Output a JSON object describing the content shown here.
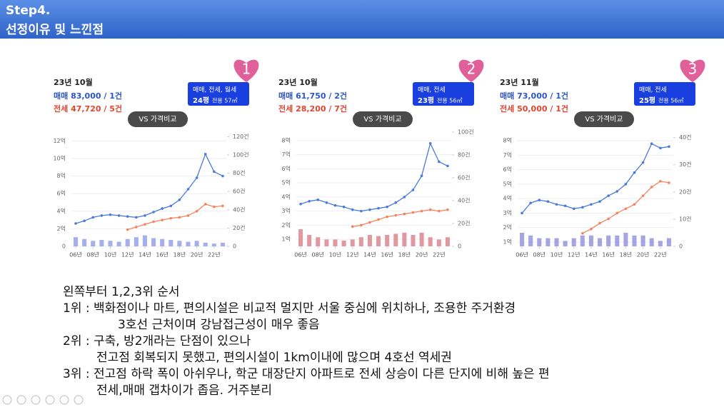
{
  "header": {
    "step": "Step4.",
    "title": "선정이유 및 느낀점"
  },
  "panels": [
    {
      "rank": "1",
      "date": "23년 10월",
      "sale": "매매 83,000 / 1건",
      "jeonse": "전세 47,720 / 5건",
      "selector": "매매, 전세, 월세",
      "size": "24평",
      "area": "전용 57㎡",
      "compare": "VS 가격비교",
      "chart_data": {
        "type": "line",
        "x": [
          2006,
          2007,
          2008,
          2009,
          2010,
          2011,
          2012,
          2013,
          2014,
          2015,
          2016,
          2017,
          2018,
          2019,
          2020,
          2021,
          2022,
          2023
        ],
        "xlim": [
          2005.5,
          2023.5
        ],
        "xticks": [
          {
            "value": 2006,
            "label": "06년"
          },
          {
            "value": 2008,
            "label": "08년"
          },
          {
            "value": 2010,
            "label": "10년"
          },
          {
            "value": 2012,
            "label": "12년"
          },
          {
            "value": 2014,
            "label": "14년"
          },
          {
            "value": 2016,
            "label": "16년"
          },
          {
            "value": 2018,
            "label": "18년"
          },
          {
            "value": 2020,
            "label": "20년"
          },
          {
            "value": 2022,
            "label": "22년"
          }
        ],
        "ylim": [
          0,
          13
        ],
        "yticks": [
          0,
          {
            "value": 2,
            "label": "2억"
          },
          {
            "value": 4,
            "label": "4억"
          },
          {
            "value": 6,
            "label": "6억"
          },
          {
            "value": 8,
            "label": "8억"
          },
          {
            "value": 10,
            "label": "10억"
          },
          {
            "value": 12,
            "label": "12억"
          }
        ],
        "y2lim": [
          0,
          125
        ],
        "y2ticks": [
          0,
          {
            "value": 20,
            "label": "20건"
          },
          {
            "value": 40,
            "label": "40건"
          },
          {
            "value": 60,
            "label": "60건"
          },
          {
            "value": 80,
            "label": "80건"
          },
          {
            "value": 100,
            "label": "100건"
          },
          {
            "value": 120,
            "label": "120건"
          }
        ],
        "series": [
          {
            "color": "#8e9be6",
            "axis": "y2",
            "type": "bar",
            "values": [
              10,
              8,
              6,
              7,
              6,
              5,
              8,
              10,
              12,
              9,
              8,
              7,
              6,
              5,
              6,
              4,
              3,
              4
            ]
          },
          {
            "color": "#4a7bdc",
            "values": [
              2.6,
              2.9,
              3.3,
              3.5,
              3.6,
              3.5,
              3.4,
              3.3,
              3.5,
              3.9,
              4.3,
              4.6,
              5.3,
              6.5,
              7.8,
              10.5,
              8.5,
              8.0
            ]
          },
          {
            "color": "#f4845f",
            "values": [
              null,
              null,
              null,
              null,
              null,
              null,
              1.9,
              2.2,
              2.5,
              2.8,
              3.0,
              3.2,
              3.3,
              3.5,
              4.0,
              4.8,
              4.5,
              4.6
            ]
          }
        ]
      }
    },
    {
      "rank": "2",
      "date": "23년 10월",
      "sale": "매매 61,750 / 2건",
      "jeonse": "전세 28,200 / 7건",
      "selector": "매매, 전세",
      "size": "23평",
      "area": "전용 56㎡",
      "compare": "VS 가격비교",
      "chart_data": {
        "type": "line",
        "x": [
          2006,
          2007,
          2008,
          2009,
          2010,
          2011,
          2012,
          2013,
          2014,
          2015,
          2016,
          2017,
          2018,
          2019,
          2020,
          2021,
          2022,
          2023
        ],
        "xlim": [
          2005.5,
          2023.5
        ],
        "xticks": [
          {
            "value": 2006,
            "label": "06년"
          },
          {
            "value": 2008,
            "label": "08년"
          },
          {
            "value": 2010,
            "label": "10년"
          },
          {
            "value": 2012,
            "label": "12년"
          },
          {
            "value": 2014,
            "label": "14년"
          },
          {
            "value": 2016,
            "label": "16년"
          },
          {
            "value": 2018,
            "label": "18년"
          },
          {
            "value": 2020,
            "label": "20년"
          },
          {
            "value": 2022,
            "label": "22년"
          }
        ],
        "ylim": [
          0.5,
          8.6
        ],
        "yticks": [
          {
            "value": 1,
            "label": "1억"
          },
          {
            "value": 2,
            "label": "2억"
          },
          {
            "value": 3,
            "label": "3억"
          },
          {
            "value": 4,
            "label": "4억"
          },
          {
            "value": 5,
            "label": "5억"
          },
          {
            "value": 6,
            "label": "6억"
          },
          {
            "value": 7,
            "label": "7억"
          },
          {
            "value": 8,
            "label": "8억"
          }
        ],
        "y2lim": [
          0,
          100
        ],
        "y2ticks": [
          0,
          {
            "value": 20,
            "label": "20건"
          },
          {
            "value": 40,
            "label": "40건"
          },
          {
            "value": 60,
            "label": "60건"
          },
          {
            "value": 80,
            "label": "80건"
          },
          {
            "value": 100,
            "label": "100건"
          }
        ],
        "series": [
          {
            "color": "#d9808a",
            "axis": "y2",
            "type": "bar",
            "values": [
              15,
              10,
              8,
              6,
              6,
              5,
              6,
              8,
              10,
              9,
              10,
              11,
              12,
              10,
              12,
              8,
              6,
              8
            ]
          },
          {
            "color": "#4a7bdc",
            "values": [
              3.5,
              3.7,
              3.8,
              3.6,
              3.4,
              3.3,
              3.1,
              3.0,
              3.1,
              3.2,
              3.3,
              3.6,
              4.0,
              4.5,
              5.5,
              7.8,
              6.5,
              6.2
            ]
          },
          {
            "color": "#f4845f",
            "values": [
              null,
              null,
              null,
              null,
              null,
              null,
              1.9,
              2.0,
              2.2,
              2.4,
              2.6,
              2.7,
              2.8,
              2.9,
              3.0,
              3.1,
              3.0,
              3.1
            ]
          }
        ]
      }
    },
    {
      "rank": "3",
      "date": "23년 11월",
      "sale": "매매 73,000 / 1건",
      "jeonse": "전세 50,000 / 1건",
      "selector": "매매, 전세",
      "size": "25평",
      "area": "전용 56㎡",
      "compare": "VS 가격비교",
      "chart_data": {
        "type": "line",
        "x": [
          2006,
          2007,
          2008,
          2009,
          2010,
          2011,
          2012,
          2013,
          2014,
          2015,
          2016,
          2017,
          2018,
          2019,
          2020,
          2021,
          2022,
          2023
        ],
        "xlim": [
          2005.5,
          2023.5
        ],
        "xticks": [
          {
            "value": 2006,
            "label": "06년"
          },
          {
            "value": 2008,
            "label": "08년"
          },
          {
            "value": 2010,
            "label": "10년"
          },
          {
            "value": 2012,
            "label": "12년"
          },
          {
            "value": 2014,
            "label": "14년"
          },
          {
            "value": 2016,
            "label": "16년"
          },
          {
            "value": 2018,
            "label": "18년"
          },
          {
            "value": 2020,
            "label": "20년"
          },
          {
            "value": 2022,
            "label": "22년"
          }
        ],
        "ylim": [
          0.7,
          8.6
        ],
        "yticks": [
          {
            "value": 1,
            "label": "1억"
          },
          {
            "value": 2,
            "label": "2억"
          },
          {
            "value": 3,
            "label": "3억"
          },
          {
            "value": 4,
            "label": "4억"
          },
          {
            "value": 5,
            "label": "5억"
          },
          {
            "value": 6,
            "label": "6억"
          },
          {
            "value": 7,
            "label": "7억"
          },
          {
            "value": 8,
            "label": "8억"
          }
        ],
        "y2lim": [
          0,
          42
        ],
        "y2ticks": [
          0,
          {
            "value": 10,
            "label": "10건"
          },
          {
            "value": 20,
            "label": "20건"
          },
          {
            "value": 30,
            "label": "30건"
          },
          {
            "value": 40,
            "label": "40건"
          }
        ],
        "series": [
          {
            "color": "#8e8fe0",
            "axis": "y2",
            "type": "bar",
            "values": [
              5,
              4,
              3,
              3,
              3,
              2,
              3,
              4,
              4,
              3,
              4,
              4,
              5,
              4,
              4,
              3,
              2,
              3
            ]
          },
          {
            "color": "#4a7bdc",
            "values": [
              3.0,
              3.7,
              3.9,
              3.8,
              3.6,
              3.5,
              3.3,
              3.4,
              3.6,
              3.8,
              4.2,
              4.5,
              5.0,
              5.8,
              6.5,
              7.8,
              7.5,
              7.6
            ]
          },
          {
            "color": "#f4845f",
            "values": [
              null,
              null,
              null,
              null,
              null,
              null,
              null,
              1.6,
              1.9,
              2.3,
              2.6,
              3.0,
              3.3,
              3.6,
              4.2,
              4.8,
              5.2,
              5.1
            ]
          }
        ]
      }
    }
  ],
  "notes": [
    "왼쪽부터 1,2,3위 순서",
    "1위 : 백화점이나 마트, 편의시설은 비교적 멀지만 서울 중심에 위치하나, 조용한 주거환경",
    "3호선 근처이며 강남접근성이 매우 좋음",
    "2위 : 구축, 방2개라는 단점이 있으나",
    "전고점 회복되지 못했고, 편의시설이 1km이내에 많으며 4호선 역세권",
    "3위 : 전고점 하락 폭이 아쉬우나, 학군 대장단지 아파트로 전세 상승이 다른 단지에 비해 높은 편",
    "전세,매매 갭차이가 좁음. 거주분리"
  ]
}
